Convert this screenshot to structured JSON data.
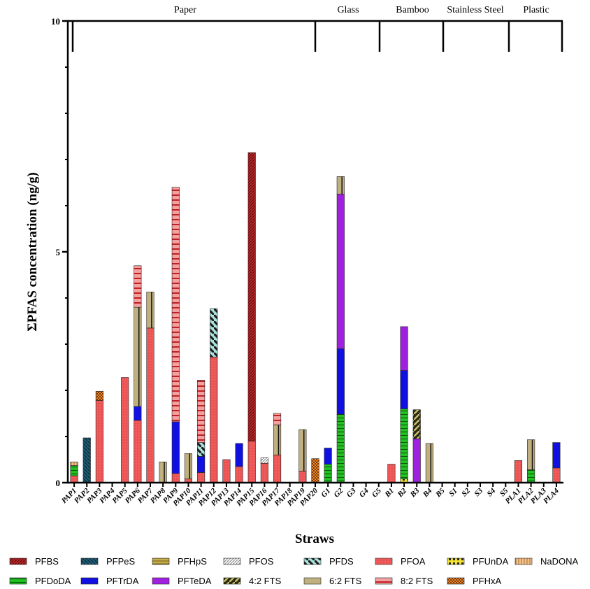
{
  "chart_data": {
    "type": "bar",
    "stacked": true,
    "title": "",
    "xlabel": "Straws",
    "ylabel": "ΣPFAS concentration (ng/g)",
    "ylim": [
      0,
      10
    ],
    "yticks": [
      "0",
      "5",
      "10"
    ],
    "categories": [
      "PAP1",
      "PAP2",
      "PAP3",
      "PAP4",
      "PAP5",
      "PAP6",
      "PAP7",
      "PAP8",
      "PAP9",
      "PAP10",
      "PAP11",
      "PAP12",
      "PAP13",
      "PAP14",
      "PAP15",
      "PAP16",
      "PAP17",
      "PAP18",
      "PAP19",
      "PAP20",
      "G1",
      "G2",
      "G3",
      "G4",
      "G5",
      "B1",
      "B2",
      "B3",
      "B4",
      "B5",
      "S1",
      "S2",
      "S3",
      "S4",
      "S5",
      "PLA1",
      "PLA2",
      "PLA3",
      "PLA4"
    ],
    "groups": [
      {
        "name": "Paper",
        "start": 0,
        "end": 19
      },
      {
        "name": "Glass",
        "start": 20,
        "end": 24
      },
      {
        "name": "Bamboo",
        "start": 25,
        "end": 29
      },
      {
        "name": "Stainless Steel",
        "start": 30,
        "end": 34
      },
      {
        "name": "Plastic",
        "start": 35,
        "end": 38
      }
    ],
    "series": [
      {
        "name": "PFBS",
        "color": "#c0282b",
        "pattern": "diag-dense",
        "values": [
          0,
          0,
          0,
          0,
          0,
          0,
          0,
          0,
          0,
          0,
          0,
          0,
          0,
          0,
          6.25,
          0,
          0,
          0,
          0,
          0,
          0,
          0,
          0,
          0,
          0,
          0,
          0,
          0,
          0,
          0,
          0,
          0,
          0,
          0,
          0,
          0,
          0,
          0,
          0
        ]
      },
      {
        "name": "PFPeS",
        "color": "#1f5f7a",
        "pattern": "diag",
        "values": [
          0,
          0.97,
          0,
          0,
          0,
          0,
          0,
          0,
          0,
          0,
          0,
          0,
          0,
          0,
          0,
          0,
          0,
          0,
          0,
          0,
          0,
          0,
          0,
          0,
          0,
          0,
          0,
          0,
          0,
          0,
          0,
          0,
          0,
          0,
          0,
          0,
          0,
          0,
          0
        ]
      },
      {
        "name": "PFHpS",
        "color": "#c8b04a",
        "pattern": "hlines",
        "values": [
          0,
          0,
          0,
          0,
          0,
          0,
          0,
          0,
          0,
          0,
          0,
          0,
          0,
          0,
          0,
          0,
          0,
          0,
          0,
          0,
          0,
          0,
          0,
          0,
          0,
          0,
          0,
          0,
          0,
          0,
          0,
          0,
          0,
          0,
          0,
          0,
          0,
          0,
          0
        ]
      },
      {
        "name": "PFOS",
        "color": "#ffffff",
        "pattern": "diag-gray",
        "values": [
          0,
          0,
          0,
          0,
          0,
          0,
          0,
          0,
          0,
          0,
          0,
          0,
          0,
          0,
          0,
          0.12,
          0,
          0,
          0,
          0,
          0,
          0,
          0,
          0,
          0,
          0,
          0,
          0,
          0,
          0,
          0,
          0,
          0,
          0,
          0,
          0,
          0,
          0,
          0
        ]
      },
      {
        "name": "PFDS",
        "color": "#a8e0dc",
        "pattern": "diag-wide",
        "values": [
          0,
          0,
          0,
          0,
          0,
          0,
          0,
          0,
          0,
          0,
          0.3,
          1.05,
          0,
          0,
          0,
          0,
          0,
          0,
          0,
          0,
          0,
          0,
          0,
          0,
          0,
          0,
          0,
          0,
          0,
          0,
          0,
          0,
          0,
          0,
          0,
          0,
          0,
          0,
          0
        ]
      },
      {
        "name": "PFOA",
        "color": "#f05a5a",
        "pattern": "dots",
        "values": [
          0.15,
          0,
          1.78,
          0,
          2.28,
          1.35,
          3.35,
          0,
          0.2,
          0.08,
          0.22,
          2.72,
          0.5,
          0.35,
          0.9,
          0.42,
          0.6,
          0,
          0.25,
          0,
          0,
          0,
          0,
          0,
          0,
          0.4,
          0,
          0,
          0,
          0,
          0,
          0,
          0,
          0,
          0,
          0.48,
          0,
          0,
          0.32
        ]
      },
      {
        "name": "PFUnDA",
        "color": "#f2e430",
        "pattern": "blocks",
        "values": [
          0,
          0,
          0,
          0,
          0,
          0,
          0,
          0,
          0,
          0,
          0,
          0,
          0,
          0,
          0,
          0,
          0,
          0,
          0,
          0,
          0,
          0,
          0,
          0,
          0,
          0,
          0.08,
          0,
          0,
          0,
          0,
          0,
          0,
          0,
          0,
          0,
          0,
          0,
          0
        ]
      },
      {
        "name": "NaDONA",
        "color": "#f4c08a",
        "pattern": "vgrid",
        "values": [
          0.08,
          0,
          0,
          0,
          0,
          0,
          0,
          0,
          0,
          0,
          0,
          0,
          0,
          0,
          0,
          0,
          0,
          0,
          0,
          0,
          0,
          0,
          0,
          0,
          0,
          0,
          0,
          0,
          0,
          0,
          0,
          0,
          0,
          0,
          0,
          0,
          0,
          0,
          0
        ]
      },
      {
        "name": "PFDoDA",
        "color": "#22c422",
        "pattern": "hlines-dark",
        "values": [
          0.22,
          0,
          0,
          0,
          0,
          0,
          0,
          0,
          0,
          0,
          0,
          0,
          0,
          0,
          0,
          0,
          0,
          0,
          0,
          0,
          0.4,
          1.48,
          0,
          0,
          0,
          0,
          1.52,
          0,
          0,
          0,
          0,
          0,
          0,
          0,
          0,
          0,
          0.28,
          0,
          0
        ]
      },
      {
        "name": "PFTrDA",
        "color": "#1010e0",
        "pattern": "none",
        "values": [
          0,
          0,
          0,
          0,
          0,
          0.3,
          0,
          0,
          1.12,
          0,
          0.35,
          0,
          0,
          0.5,
          0,
          0,
          0,
          0,
          0,
          0,
          0.35,
          1.42,
          0,
          0,
          0,
          0,
          0.83,
          0,
          0,
          0,
          0,
          0,
          0,
          0,
          0,
          0,
          0,
          0,
          0.55
        ]
      },
      {
        "name": "PFTeDA",
        "color": "#a020e0",
        "pattern": "none",
        "values": [
          0,
          0,
          0,
          0,
          0,
          0,
          0,
          0,
          0,
          0,
          0,
          0,
          0,
          0,
          0,
          0,
          0,
          0,
          0,
          0,
          0,
          3.35,
          0,
          0,
          0,
          0,
          0.95,
          0.95,
          0,
          0,
          0,
          0,
          0,
          0,
          0,
          0,
          0,
          0,
          0
        ]
      },
      {
        "name": "4:2 FTS",
        "color": "#2a2a10",
        "pattern": "diag-olive",
        "values": [
          0,
          0,
          0,
          0,
          0,
          0,
          0,
          0,
          0,
          0,
          0,
          0,
          0,
          0,
          0,
          0,
          0,
          0,
          0,
          0,
          0,
          0,
          0,
          0,
          0,
          0,
          0,
          0.63,
          0,
          0,
          0,
          0,
          0,
          0,
          0,
          0,
          0,
          0,
          0
        ]
      },
      {
        "name": "6:2 FTS",
        "color": "#c0b080",
        "pattern": "vline",
        "values": [
          0,
          0,
          0,
          0,
          0,
          2.15,
          0.78,
          0.45,
          0,
          0.55,
          0,
          0,
          0,
          0,
          0,
          0,
          0.65,
          0,
          0.9,
          0,
          0,
          0.38,
          0,
          0,
          0,
          0,
          0,
          0,
          0.85,
          0,
          0,
          0,
          0,
          0,
          0,
          0,
          0.65,
          0,
          0
        ]
      },
      {
        "name": "8:2 FTS",
        "color": "#f4a0a0",
        "pattern": "hbars",
        "values": [
          0,
          0,
          0,
          0,
          0,
          0.9,
          0,
          0,
          5.08,
          0,
          1.35,
          0,
          0,
          0,
          0,
          0,
          0.25,
          0,
          0,
          0,
          0,
          0,
          0,
          0,
          0,
          0,
          0,
          0,
          0,
          0,
          0,
          0,
          0,
          0,
          0,
          0,
          0,
          0,
          0
        ]
      },
      {
        "name": "PFHxA",
        "color": "#f08a28",
        "pattern": "checker",
        "values": [
          0,
          0,
          0.2,
          0,
          0,
          0,
          0,
          0,
          0,
          0,
          0,
          0,
          0,
          0,
          0,
          0,
          0,
          0,
          0,
          0.52,
          0,
          0,
          0,
          0,
          0,
          0,
          0,
          0,
          0,
          0,
          0,
          0,
          0,
          0,
          0,
          0,
          0,
          0,
          0
        ]
      }
    ],
    "stack_order": [
      "PFOA",
      "PFUnDA",
      "PFDoDA",
      "NaDONA",
      "PFHxA",
      "PFTrDA",
      "PFTeDA",
      "PFDS",
      "PFOS",
      "4:2 FTS",
      "6:2 FTS",
      "8:2 FTS",
      "PFBS",
      "PFPeS",
      "PFHpS"
    ],
    "legend": {
      "placement": "bottom",
      "entries": [
        "PFBS",
        "PFPeS",
        "PFHpS",
        "PFOS",
        "PFDS",
        "PFOA",
        "PFUnDA",
        "NaDONA",
        "PFDoDA",
        "PFTrDA",
        "PFTeDA",
        "4:2 FTS",
        "6:2 FTS",
        "8:2 FTS",
        "PFHxA"
      ]
    }
  }
}
